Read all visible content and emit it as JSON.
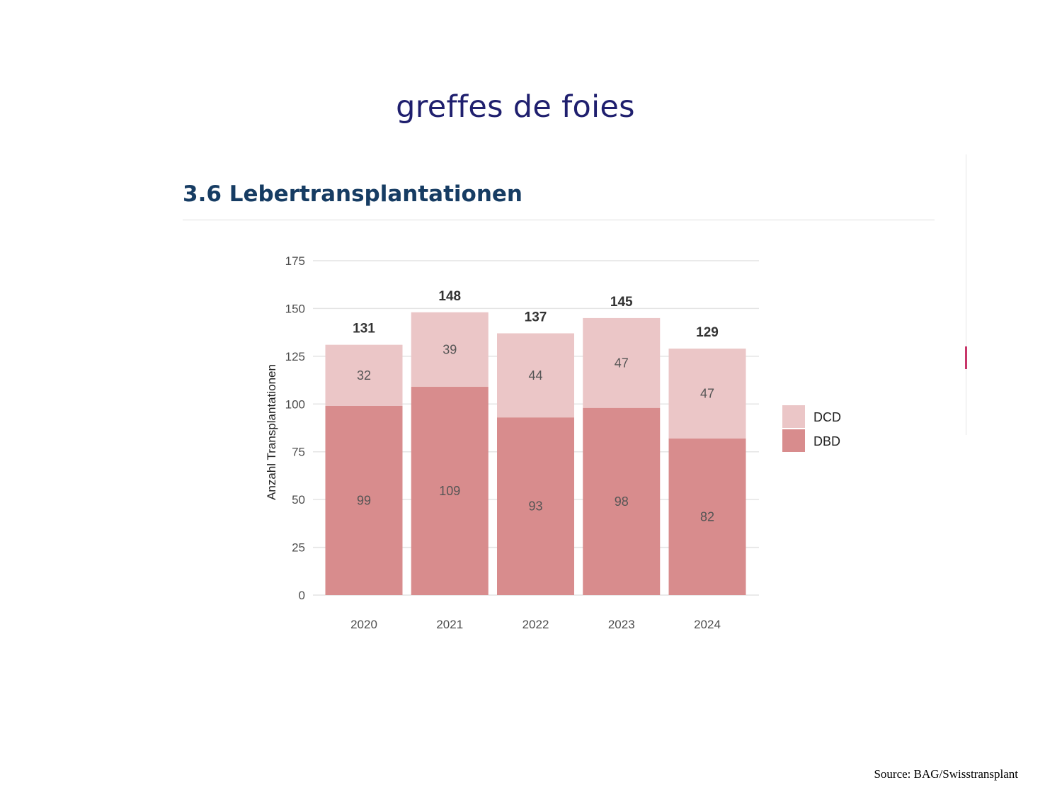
{
  "slide": {
    "title": "greffes de foies",
    "source": "Source: BAG/Swisstransplant"
  },
  "section": {
    "title": "3.6 Lebertransplantationen"
  },
  "chart_data": {
    "type": "bar",
    "stacked": true,
    "title": "3.6 Lebertransplantationen",
    "xlabel": "",
    "ylabel": "Anzahl Transplantationen",
    "ylim": [
      0,
      175
    ],
    "yticks": [
      0,
      25,
      50,
      75,
      100,
      125,
      150,
      175
    ],
    "grid": true,
    "legend_position": "right",
    "categories": [
      "2020",
      "2021",
      "2022",
      "2023",
      "2024"
    ],
    "series": [
      {
        "name": "DBD",
        "values": [
          99,
          109,
          93,
          98,
          82
        ],
        "color": "#d88c8d"
      },
      {
        "name": "DCD",
        "values": [
          32,
          39,
          44,
          47,
          47
        ],
        "color": "#ebc6c7"
      }
    ],
    "totals": [
      131,
      148,
      137,
      145,
      129
    ],
    "legend": [
      "DCD",
      "DBD"
    ]
  },
  "colors": {
    "slide_title": "#1f1f6e",
    "section_title": "#163c63",
    "grid": "#e4e4e4",
    "tick_text": "#4d4d4d",
    "label_text": "#555555",
    "total_text": "#333333"
  }
}
